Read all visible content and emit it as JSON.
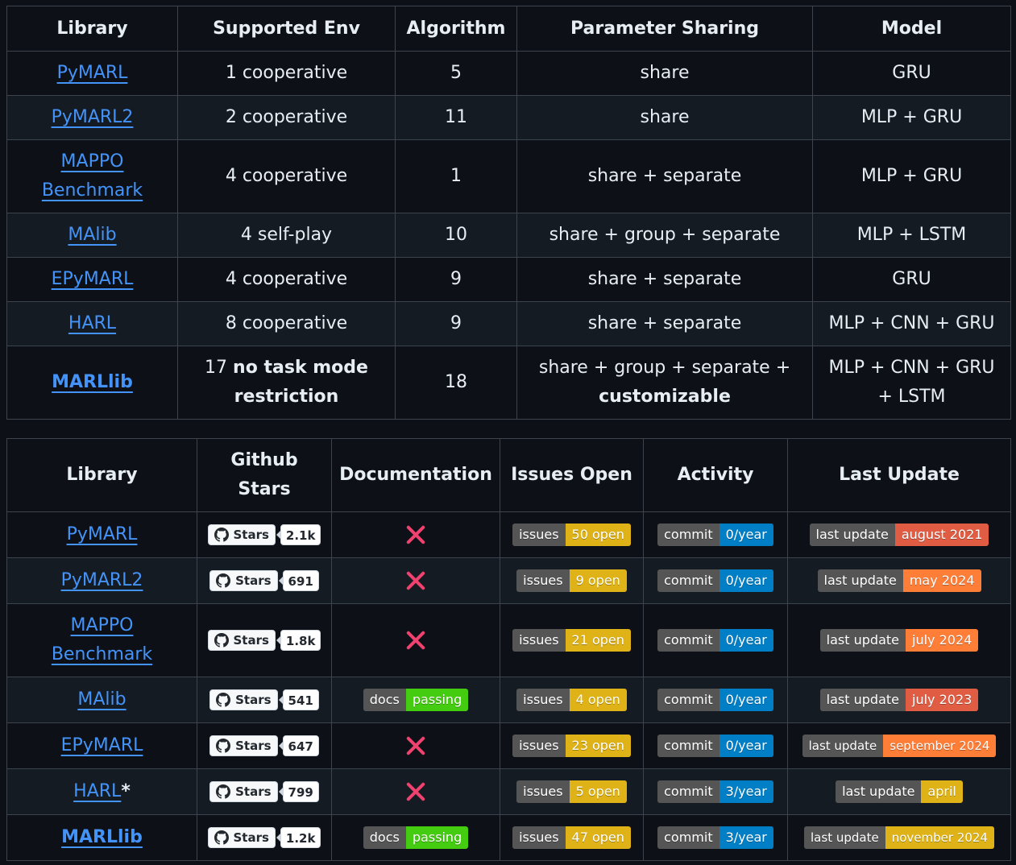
{
  "table_one": {
    "headers": [
      "Library",
      "Supported Env",
      "Algorithm",
      "Parameter Sharing",
      "Model"
    ],
    "rows": [
      {
        "library": "PyMARL",
        "env": "1 cooperative",
        "algorithm": "5",
        "sharing": "share",
        "model": "GRU"
      },
      {
        "library": "PyMARL2",
        "env": "2 cooperative",
        "algorithm": "11",
        "sharing": "share",
        "model": "MLP + GRU"
      },
      {
        "library_line1": "MAPPO",
        "library_line2": "Benchmark",
        "env": "4 cooperative",
        "algorithm": "1",
        "sharing": "share + separate",
        "model": "MLP + GRU"
      },
      {
        "library": "MAlib",
        "env": "4 self-play",
        "algorithm": "10",
        "sharing": "share + group + separate",
        "model": "MLP + LSTM"
      },
      {
        "library": "EPyMARL",
        "env": "4 cooperative",
        "algorithm": "9",
        "sharing": "share + separate",
        "model": "GRU"
      },
      {
        "library": "HARL",
        "env": "8 cooperative",
        "algorithm": "9",
        "sharing": "share + separate",
        "model": "MLP + CNN + GRU"
      },
      {
        "library": "MARLlib",
        "env_num": "17",
        "env_bold": "no task mode restriction",
        "algorithm": "18",
        "sharing_plain": "share + group + separate +",
        "sharing_bold": "customizable",
        "model_line1": "MLP + CNN + GRU",
        "model_line2": "+ LSTM"
      }
    ]
  },
  "table_two": {
    "headers": {
      "library": "Library",
      "stars_line1": "Github",
      "stars_line2": "Stars",
      "documentation": "Documentation",
      "issues": "Issues Open",
      "activity": "Activity",
      "last_update": "Last Update"
    },
    "stars_label": "Stars",
    "issues_key": "issues",
    "commit_key": "commit",
    "last_update_key": "last update",
    "docs_key": "docs",
    "docs_value": "passing",
    "rows": [
      {
        "library": "PyMARL",
        "stars": "2.1k",
        "issues": "50 open",
        "commit": "0/year",
        "last_update": "august 2021",
        "update_color": "#e05d44"
      },
      {
        "library": "PyMARL2",
        "stars": "691",
        "issues": "9 open",
        "commit": "0/year",
        "last_update": "may 2024",
        "update_color": "#fe7d37"
      },
      {
        "library_line1": "MAPPO",
        "library_line2": "Benchmark",
        "stars": "1.8k",
        "issues": "21 open",
        "commit": "0/year",
        "last_update": "july 2024",
        "update_color": "#fe7d37"
      },
      {
        "library": "MAlib",
        "stars": "541",
        "issues": "4 open",
        "commit": "0/year",
        "last_update": "july 2023",
        "update_color": "#e05d44"
      },
      {
        "library": "EPyMARL",
        "stars": "647",
        "issues": "23 open",
        "commit": "0/year",
        "last_update": "september 2024",
        "update_color": "#fe7d37"
      },
      {
        "library": "HARL",
        "library_suffix": "*",
        "stars": "799",
        "issues": "5 open",
        "commit": "3/year",
        "last_update": "april",
        "update_color": "#dfb317"
      },
      {
        "library": "MARLlib",
        "stars": "1.2k",
        "issues": "47 open",
        "commit": "3/year",
        "last_update": "november 2024",
        "update_color": "#dfb317"
      }
    ]
  },
  "colors": {
    "issues_value": "#dfb317",
    "commit_value": "#007ec6",
    "docs_value": "#4c1",
    "link": "#4493f8",
    "cross": "#f0426f"
  }
}
